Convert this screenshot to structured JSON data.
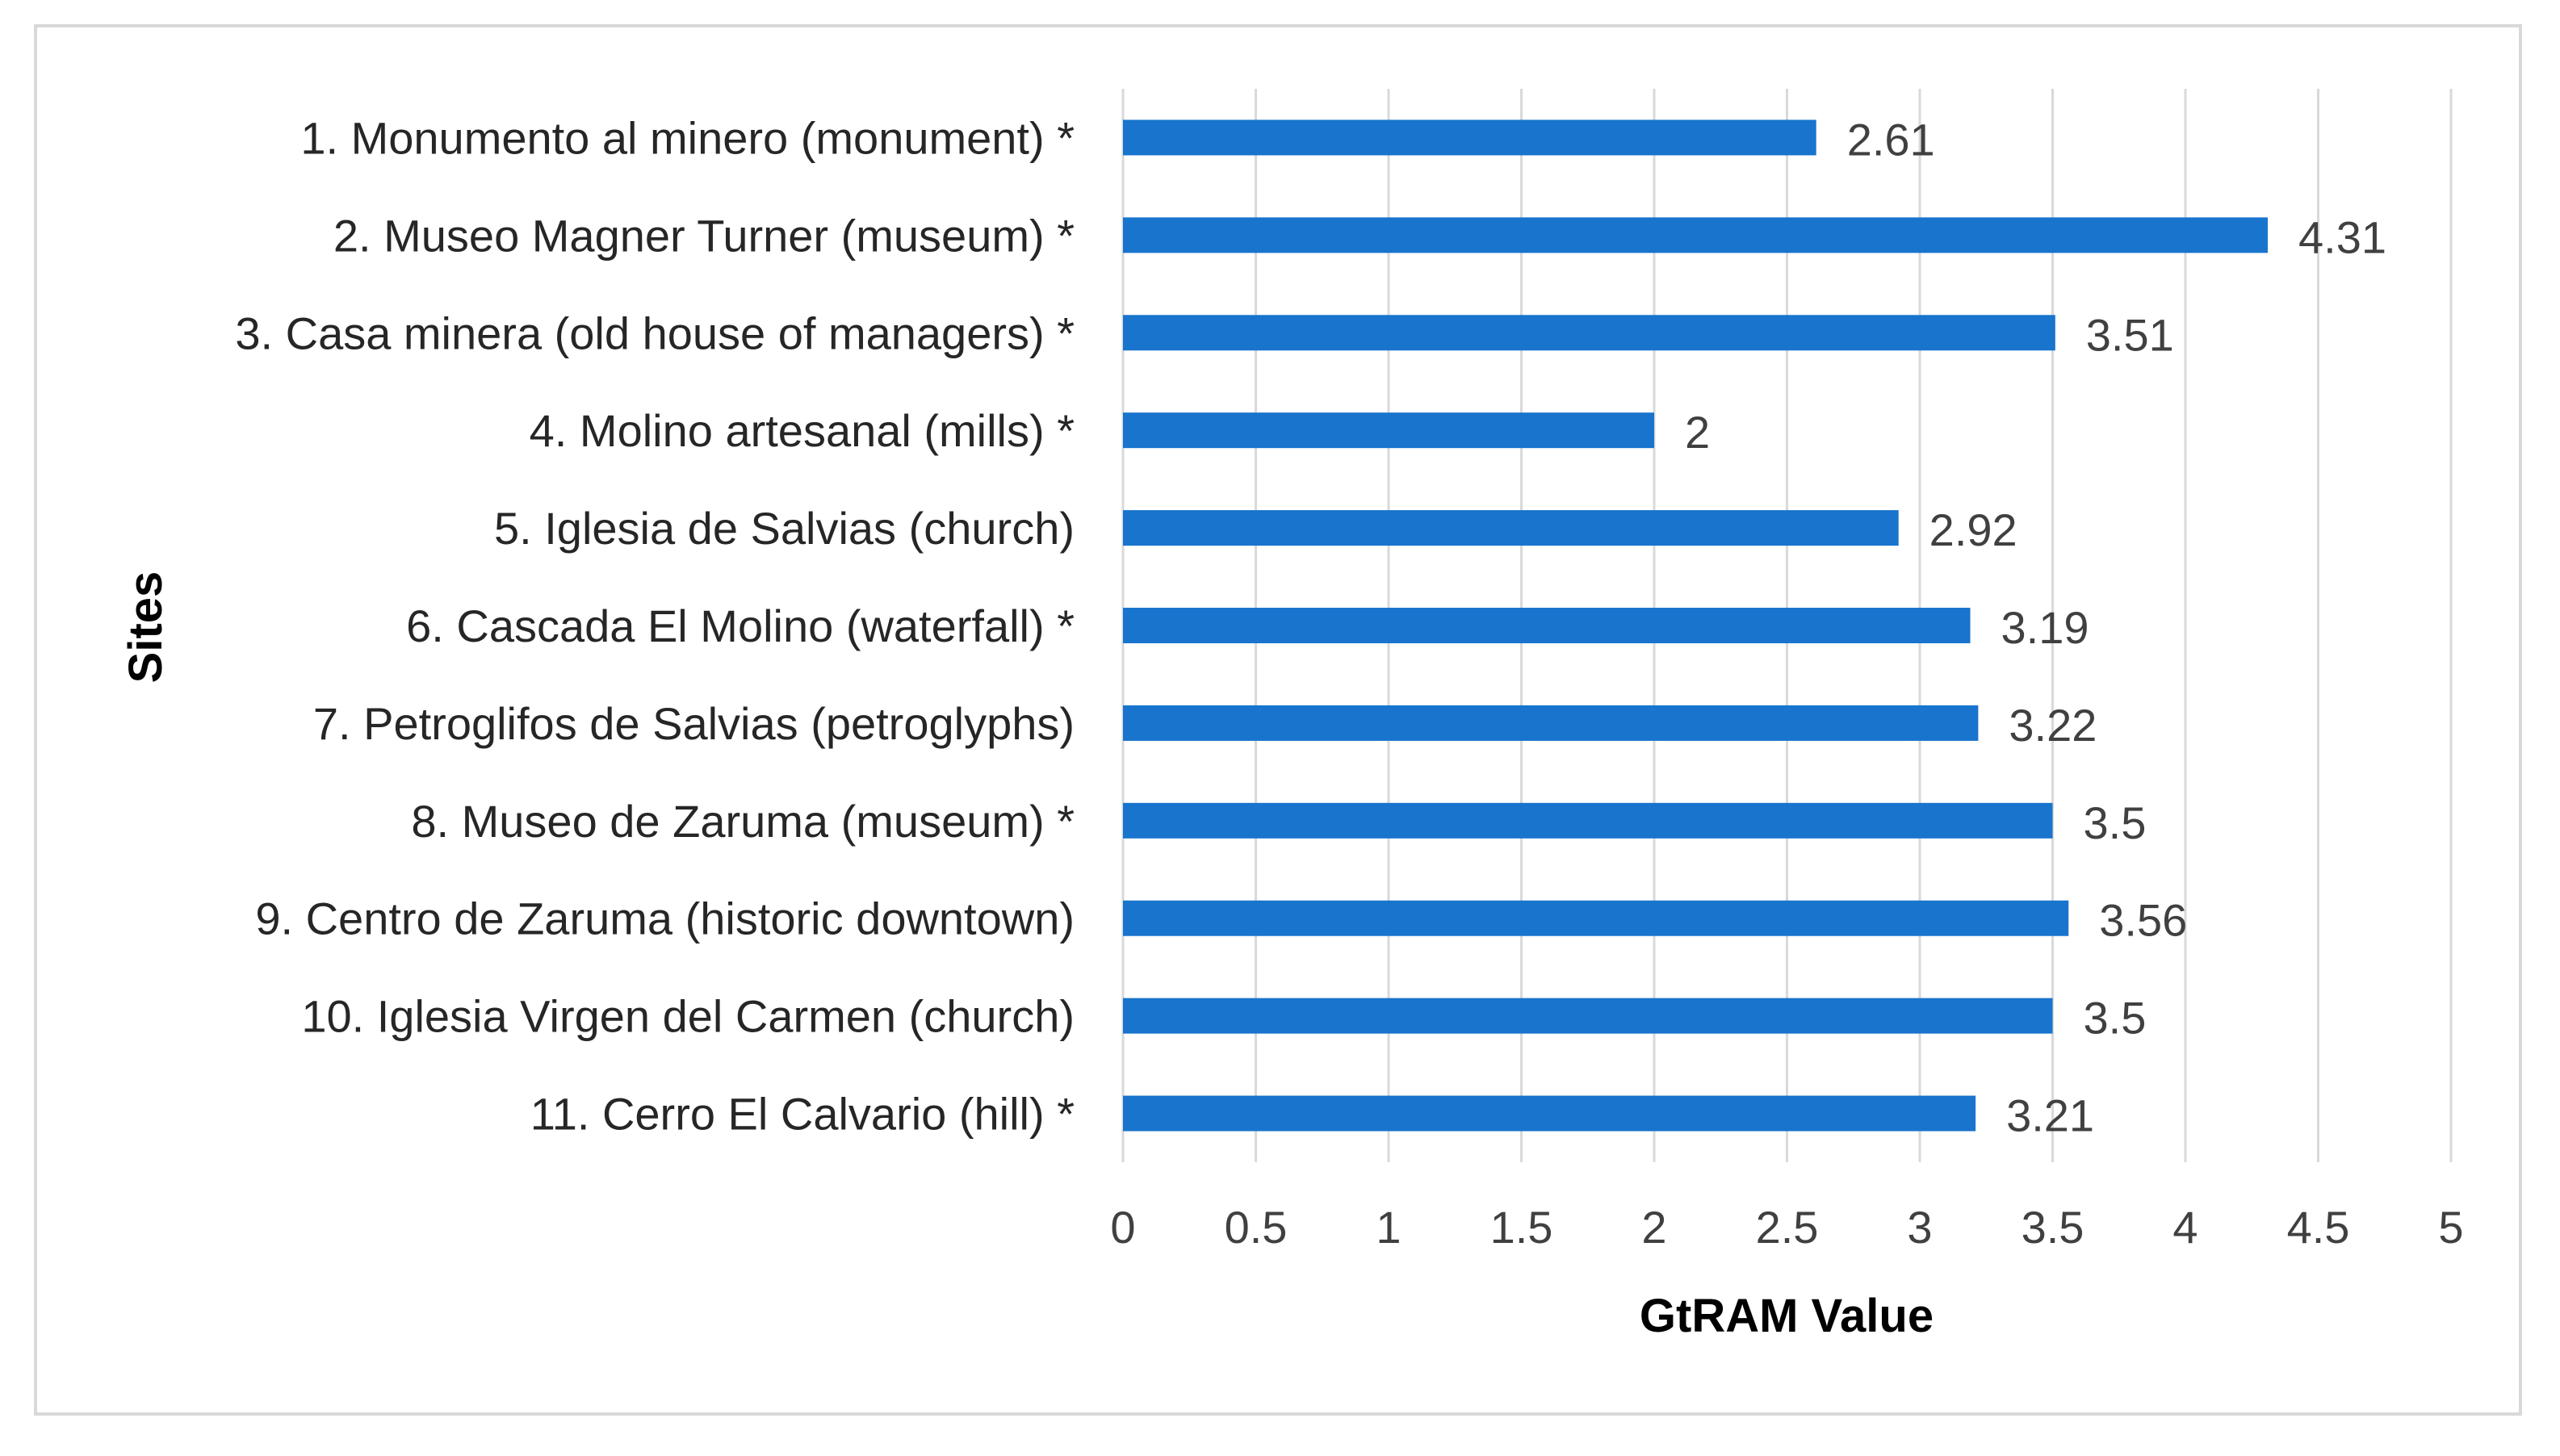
{
  "chart_data": {
    "type": "bar",
    "orientation": "horizontal",
    "title": "",
    "xlabel": "GtRAM Value",
    "ylabel": "Sites",
    "xlim": [
      0,
      5
    ],
    "xticks": [
      "0",
      "0.5",
      "1",
      "1.5",
      "2",
      "2.5",
      "3",
      "3.5",
      "4",
      "4.5",
      "5"
    ],
    "grid": "vertical",
    "bar_color": "#1874CD",
    "categories": [
      "1. Monumento al minero (monument) *",
      "2. Museo Magner Turner (museum) *",
      "3. Casa minera (old house of managers) *",
      "4. Molino artesanal (mills) *",
      "5. Iglesia de Salvias (church)",
      "6. Cascada El Molino (waterfall) *",
      "7. Petroglifos de Salvias (petroglyphs)",
      "8. Museo de Zaruma (museum) *",
      "9. Centro de Zaruma (historic downtown)",
      "10. Iglesia Virgen del Carmen (church)",
      "11. Cerro El Calvario (hill) *"
    ],
    "values": [
      2.61,
      4.31,
      3.51,
      2,
      2.92,
      3.19,
      3.22,
      3.5,
      3.56,
      3.5,
      3.21
    ],
    "value_labels": [
      "2.61",
      "4.31",
      "3.51",
      "2",
      "2.92",
      "3.19",
      "3.22",
      "3.5",
      "3.56",
      "3.5",
      "3.21"
    ]
  }
}
